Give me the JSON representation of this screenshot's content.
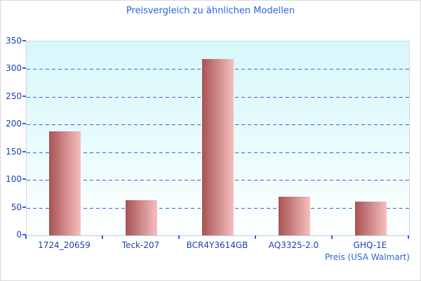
{
  "chart_data": {
    "type": "bar",
    "title": "Preisvergleich zu ähnlichen Modellen",
    "categories": [
      "1724_20659",
      "Teck-207",
      "BCR4Y3614GB",
      "AQ3325-2.0",
      "GHQ-1E"
    ],
    "values": [
      188,
      63,
      318,
      70,
      61
    ],
    "xlabel": "Preis (USA Walmart)",
    "ylabel": "",
    "ylim": [
      0,
      350
    ],
    "ytick_interval": 50,
    "yticks": [
      0,
      50,
      100,
      150,
      200,
      250,
      300,
      350
    ],
    "grid": "horizontal-dashed",
    "legend": "none",
    "colors": {
      "title": "#2b65d9",
      "axis_labels": "#1d3fae",
      "gridline": "#3c64c8",
      "tick_marks": "#2b65d9",
      "bar_gradient_left": "#a85252",
      "bar_gradient_right": "#f7bfbf",
      "plot_bg_top": "#d8f7fb",
      "plot_bg_bottom": "#ffffff",
      "page_border": "#d9d9d9"
    }
  }
}
